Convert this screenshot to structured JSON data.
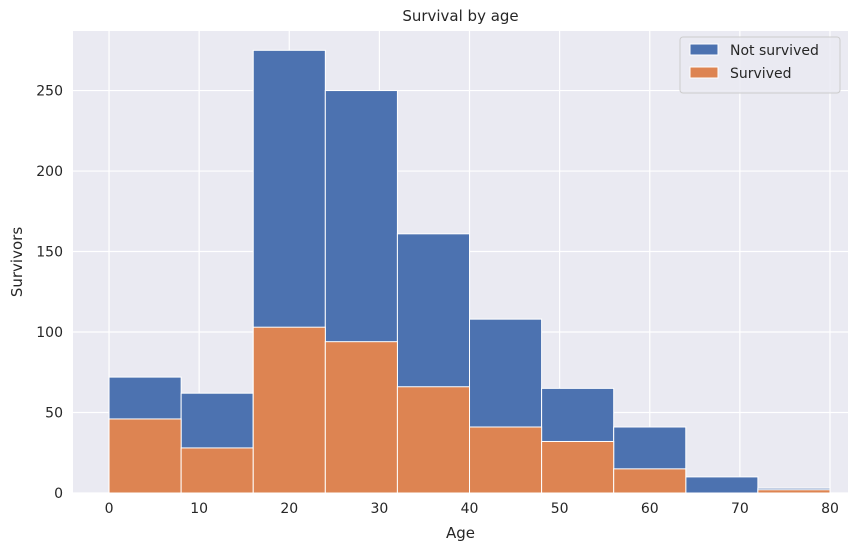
{
  "chart_data": {
    "type": "bar",
    "title": "Survival by age",
    "xlabel": "Age",
    "ylabel": "Survivors",
    "xlim": [
      -4,
      82
    ],
    "ylim": [
      0,
      287
    ],
    "grid": true,
    "legend_position": "top-right",
    "x_ticks": [
      0,
      10,
      20,
      30,
      40,
      50,
      60,
      70,
      80
    ],
    "y_ticks": [
      0,
      50,
      100,
      150,
      200,
      250
    ],
    "bins": [
      {
        "from": 0,
        "to": 8
      },
      {
        "from": 8,
        "to": 16
      },
      {
        "from": 16,
        "to": 24
      },
      {
        "from": 24,
        "to": 32
      },
      {
        "from": 32,
        "to": 40
      },
      {
        "from": 40,
        "to": 48
      },
      {
        "from": 48,
        "to": 56
      },
      {
        "from": 56,
        "to": 64
      },
      {
        "from": 64,
        "to": 72
      },
      {
        "from": 72,
        "to": 80
      }
    ],
    "series": [
      {
        "name": "Not survived",
        "color": "#4c72b0",
        "values": [
          72,
          62,
          275,
          250,
          161,
          108,
          65,
          41,
          10,
          3
        ]
      },
      {
        "name": "Survived",
        "color": "#dd8452",
        "values": [
          46,
          28,
          103,
          94,
          66,
          41,
          32,
          15,
          0,
          2
        ]
      }
    ]
  }
}
